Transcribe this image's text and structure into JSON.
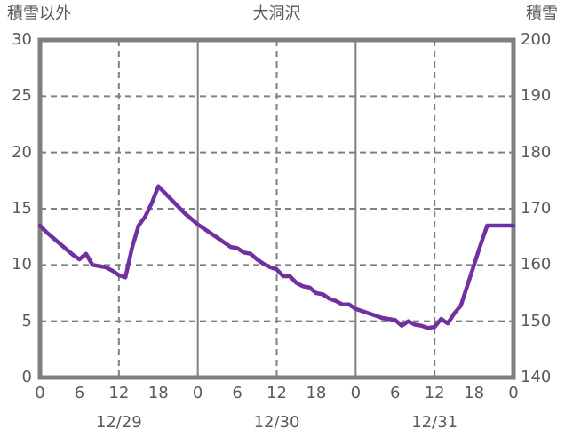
{
  "header": {
    "left_axis_title": "積雪以外",
    "title": "大洞沢",
    "right_axis_title": "積雪"
  },
  "chart_data": {
    "type": "line",
    "title": "大洞沢",
    "legend_position": "none",
    "grid": "dashed horizontal every 5 units; dashed vertical at noon; solid vertical at midnight",
    "left_axis": {
      "title": "積雪以外",
      "min": 0,
      "max": 30,
      "ticks": [
        30,
        25,
        20,
        15,
        10,
        5,
        0
      ]
    },
    "right_axis": {
      "title": "積雪",
      "min": 140,
      "max": 200,
      "ticks": [
        200,
        190,
        180,
        170,
        160,
        150,
        140
      ]
    },
    "x_axis": {
      "hours_total": 72,
      "hour_tick_step": 6,
      "hour_tick_labels": [
        "0",
        "6",
        "12",
        "18",
        "0",
        "6",
        "12",
        "18",
        "0",
        "6",
        "12",
        "18",
        "0"
      ],
      "day_labels": [
        {
          "label": "12/29",
          "center_hour": 12
        },
        {
          "label": "12/30",
          "center_hour": 36
        },
        {
          "label": "12/31",
          "center_hour": 60
        }
      ],
      "solid_gridline_hours": [
        24,
        48
      ],
      "dashed_gridline_hours": [
        12,
        36,
        60
      ]
    },
    "series": [
      {
        "name": "積雪以外 (大洞沢)",
        "axis": "left",
        "x_hours_from_1229_0000": [
          0,
          1,
          2,
          3,
          4,
          5,
          6,
          7,
          8,
          9,
          10,
          11,
          12,
          13,
          14,
          15,
          16,
          17,
          18,
          19,
          20,
          21,
          22,
          23,
          24,
          25,
          26,
          27,
          28,
          29,
          30,
          31,
          32,
          33,
          34,
          35,
          36,
          37,
          38,
          39,
          40,
          41,
          42,
          43,
          44,
          45,
          46,
          47,
          48,
          49,
          50,
          51,
          52,
          53,
          54,
          55,
          56,
          57,
          58,
          59,
          60,
          61,
          62,
          63,
          64,
          65,
          66,
          67,
          68,
          69,
          70,
          71,
          72
        ],
        "values": [
          13.5,
          12.9,
          12.4,
          11.9,
          11.4,
          10.9,
          10.5,
          11.0,
          10.0,
          9.9,
          9.8,
          9.5,
          9.1,
          8.9,
          11.5,
          13.5,
          14.3,
          15.5,
          17.0,
          16.4,
          15.8,
          15.2,
          14.6,
          14.1,
          13.6,
          13.2,
          12.8,
          12.4,
          12.0,
          11.6,
          11.5,
          11.1,
          11.0,
          10.5,
          10.1,
          9.8,
          9.6,
          9.0,
          9.0,
          8.4,
          8.1,
          8.0,
          7.5,
          7.4,
          7.0,
          6.8,
          6.5,
          6.5,
          6.1,
          5.9,
          5.7,
          5.5,
          5.3,
          5.2,
          5.1,
          4.6,
          5.0,
          4.7,
          4.6,
          4.4,
          4.5,
          5.2,
          4.8,
          5.7,
          6.4,
          8.2,
          10.0,
          11.8,
          13.5,
          13.5,
          13.5,
          13.5,
          13.5
        ]
      }
    ],
    "colors": {
      "line": "#7030A0",
      "grid": "#808080",
      "border": "#7F7F7F",
      "text": "#595959",
      "background": "#FFFFFF"
    }
  }
}
